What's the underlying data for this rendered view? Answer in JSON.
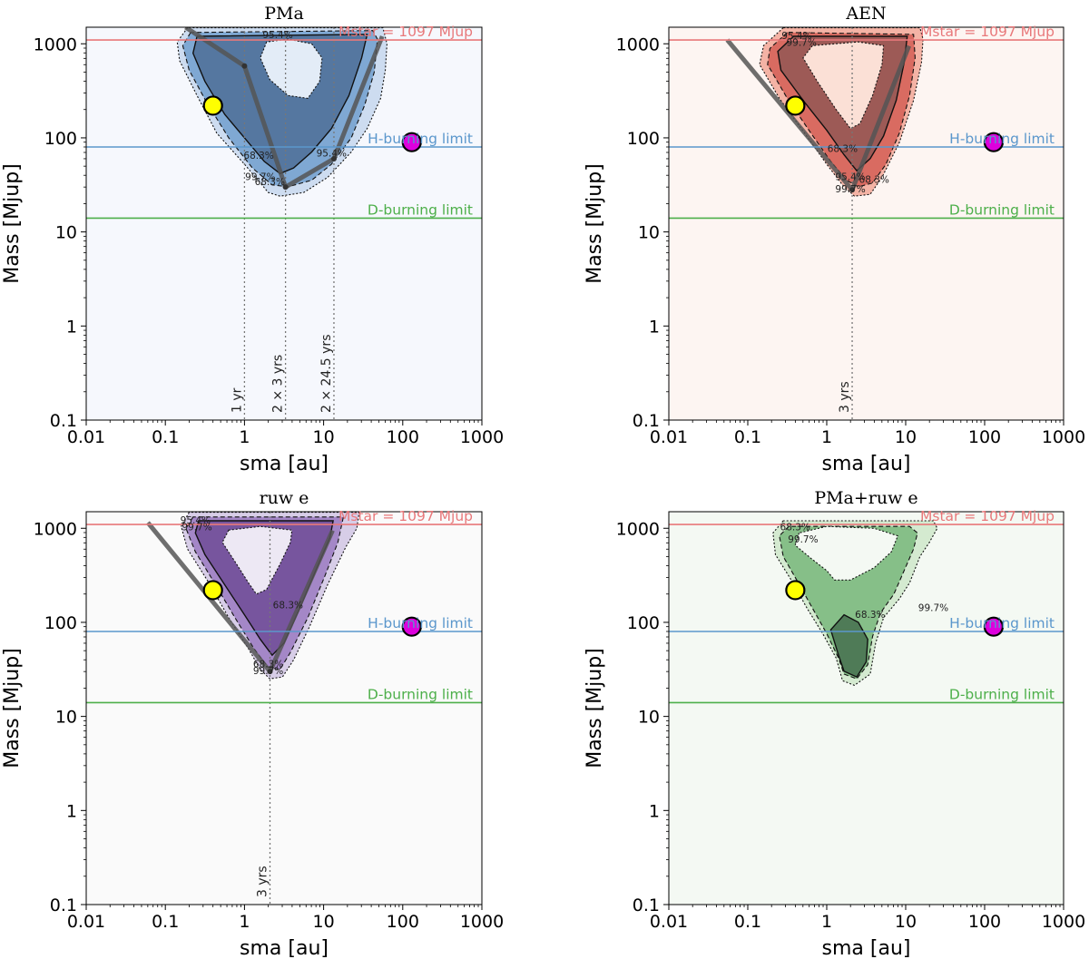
{
  "figure": {
    "width": 1200,
    "height": 1057
  },
  "chart_data": [
    {
      "id": "pma",
      "type": "contour",
      "title": "PMa",
      "xlabel": "sma [au]",
      "ylabel": "Mass [Mjup]",
      "xscale": "log",
      "yscale": "log",
      "xlim": [
        0.01,
        1000
      ],
      "ylim": [
        0.1,
        1500
      ],
      "xticks": [
        "0.01",
        "0.1",
        "1",
        "10",
        "100",
        "1000"
      ],
      "yticks": [
        "0.1",
        "1",
        "10",
        "100",
        "1000"
      ],
      "palette": {
        "bg": "#f6f8fd",
        "outer": "#cddcf0",
        "mid": "#7fa8d3",
        "inner": "#5577a0",
        "core": "#e3ecf7"
      },
      "hlines": [
        {
          "label": "Mstar = 1097 Mjup",
          "y": 1097,
          "color": "#e8787a"
        },
        {
          "label": "H-burning limit",
          "y": 80,
          "color": "#5b97cc"
        },
        {
          "label": "D-burning limit",
          "y": 14,
          "color": "#4daf4a"
        }
      ],
      "vlines": [
        {
          "label": "1 yr",
          "x": 1.0
        },
        {
          "label": "2 × 3 yrs",
          "x": 3.3
        },
        {
          "label": "2 × 24.5 yrs",
          "x": 13.5
        }
      ],
      "sensitivity_curve": [
        [
          0.18,
          1500
        ],
        [
          1.0,
          580
        ],
        [
          3.3,
          30
        ],
        [
          13.5,
          60
        ],
        [
          55,
          1200
        ]
      ],
      "contour_labels": [
        "95.4%",
        "68.3%",
        "99.7%",
        "68.3%",
        "95.4%"
      ],
      "markers": [
        {
          "name": "yellow",
          "x": 0.4,
          "y": 220,
          "color": "#ffff00"
        },
        {
          "name": "magenta",
          "x": 130,
          "y": 90,
          "color": "#dd00dd"
        }
      ]
    },
    {
      "id": "aen",
      "type": "contour",
      "title": "AEN",
      "xlabel": "sma [au]",
      "ylabel": "Mass [Mjup]",
      "xscale": "log",
      "yscale": "log",
      "xlim": [
        0.01,
        1000
      ],
      "ylim": [
        0.1,
        1500
      ],
      "xticks": [
        "0.01",
        "0.1",
        "1",
        "10",
        "100",
        "1000"
      ],
      "yticks": [
        "0.1",
        "1",
        "10",
        "100",
        "1000"
      ],
      "palette": {
        "bg": "#fdf5f2",
        "outer": "#f4b3a5",
        "mid": "#d96b61",
        "inner": "#9d5a56",
        "core": "#fbe0d6"
      },
      "hlines": [
        {
          "label": "Mstar = 1097 Mjup",
          "y": 1097,
          "color": "#e8787a"
        },
        {
          "label": "H-burning limit",
          "y": 80,
          "color": "#5b97cc"
        },
        {
          "label": "D-burning limit",
          "y": 14,
          "color": "#4daf4a"
        }
      ],
      "vlines": [
        {
          "label": "3 yrs",
          "x": 2.1
        }
      ],
      "sensitivity_curve": [
        [
          0.055,
          1100
        ],
        [
          2.1,
          28
        ],
        [
          11,
          950
        ]
      ],
      "contour_labels": [
        "95.4%",
        "99.7%",
        "68.3%",
        "95.4%",
        "99.7%",
        "68.3%"
      ],
      "markers": [
        {
          "name": "yellow",
          "x": 0.4,
          "y": 220,
          "color": "#ffff00"
        },
        {
          "name": "magenta",
          "x": 130,
          "y": 90,
          "color": "#dd00dd"
        }
      ]
    },
    {
      "id": "ruwe",
      "type": "contour",
      "title": "ruw e",
      "xlabel": "sma [au]",
      "ylabel": "Mass [Mjup]",
      "xscale": "log",
      "yscale": "log",
      "xlim": [
        0.01,
        1000
      ],
      "ylim": [
        0.1,
        1500
      ],
      "xticks": [
        "0.01",
        "0.1",
        "1",
        "10",
        "100",
        "1000"
      ],
      "yticks": [
        "0.1",
        "1",
        "10",
        "100",
        "1000"
      ],
      "palette": {
        "bg": "#fafafa",
        "outer": "#d7cde7",
        "mid": "#a487c7",
        "inner": "#77559e",
        "core": "#ede8f4"
      },
      "hlines": [
        {
          "label": "Mstar = 1097 Mjup",
          "y": 1097,
          "color": "#e8787a"
        },
        {
          "label": "H-burning limit",
          "y": 80,
          "color": "#5b97cc"
        },
        {
          "label": "D-burning limit",
          "y": 14,
          "color": "#4daf4a"
        }
      ],
      "vlines": [
        {
          "label": "3 yrs",
          "x": 2.1
        }
      ],
      "sensitivity_curve": [
        [
          0.06,
          1150
        ],
        [
          2.1,
          30
        ],
        [
          13,
          950
        ]
      ],
      "contour_labels": [
        "95.4%",
        "99.7%",
        "68.3%",
        "68.3%",
        "99.7%"
      ],
      "markers": [
        {
          "name": "yellow",
          "x": 0.4,
          "y": 220,
          "color": "#ffff00"
        },
        {
          "name": "magenta",
          "x": 130,
          "y": 90,
          "color": "#dd00dd"
        }
      ]
    },
    {
      "id": "pma-ruwe",
      "type": "contour",
      "title": "PMa+ruw e",
      "xlabel": "sma [au]",
      "ylabel": "Mass [Mjup]",
      "xscale": "log",
      "yscale": "log",
      "xlim": [
        0.01,
        1000
      ],
      "ylim": [
        0.1,
        1500
      ],
      "xticks": [
        "0.01",
        "0.1",
        "1",
        "10",
        "100",
        "1000"
      ],
      "yticks": [
        "0.1",
        "1",
        "10",
        "100",
        "1000"
      ],
      "palette": {
        "bg": "#f4f9f3",
        "outer": "#d4ead0",
        "mid": "#86bf88",
        "inner": "#4f7b57",
        "core": "#f4f9f3"
      },
      "hlines": [
        {
          "label": "Mstar = 1097 Mjup",
          "y": 1097,
          "color": "#e8787a"
        },
        {
          "label": "H-burning limit",
          "y": 80,
          "color": "#5b97cc"
        },
        {
          "label": "D-burning limit",
          "y": 14,
          "color": "#4daf4a"
        }
      ],
      "vlines": [],
      "sensitivity_curve": [],
      "contour_labels": [
        "68.3%",
        "99.7%",
        "68.3%",
        "99.7%"
      ],
      "markers": [
        {
          "name": "yellow",
          "x": 0.4,
          "y": 220,
          "color": "#ffff00"
        },
        {
          "name": "magenta",
          "x": 130,
          "y": 90,
          "color": "#dd00dd"
        }
      ]
    }
  ]
}
